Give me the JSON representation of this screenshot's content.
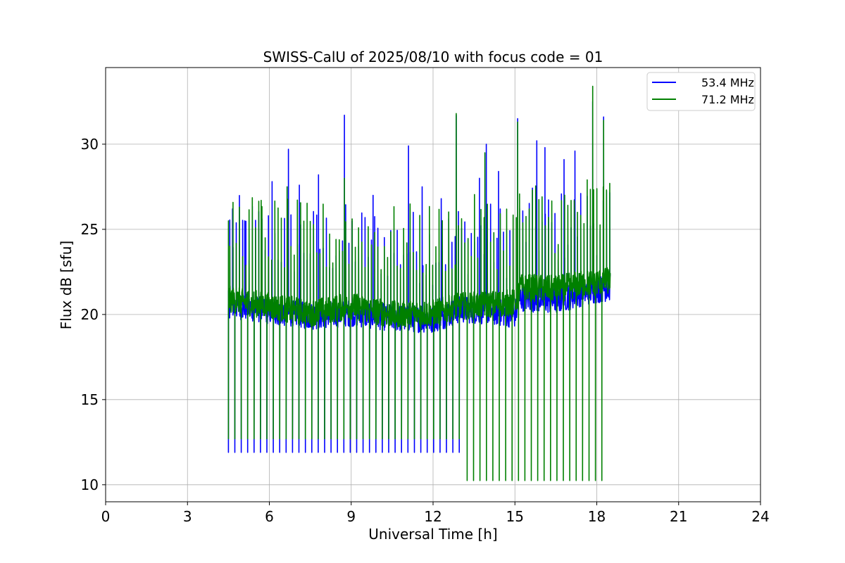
{
  "chart_data": {
    "type": "line",
    "title": "SWISS-CalU of 2025/08/10 with focus code = 01",
    "xlabel": "Universal Time [h]",
    "ylabel": "Flux dB [sfu]",
    "xlim": [
      0,
      24
    ],
    "ylim": [
      9.0,
      34.5
    ],
    "xticks": [
      0,
      3,
      6,
      9,
      12,
      15,
      18,
      21,
      24
    ],
    "yticks": [
      10,
      15,
      20,
      25,
      30
    ],
    "grid": true,
    "legend_position": "top-right",
    "series": [
      {
        "name": "53.4 MHz",
        "color": "#0000ff",
        "x_range": [
          4.5,
          18.5
        ],
        "baseline": [
          [
            4.5,
            20.6
          ],
          [
            6,
            20.2
          ],
          [
            7.5,
            19.9
          ],
          [
            9,
            20.1
          ],
          [
            10.5,
            19.8
          ],
          [
            12,
            19.7
          ],
          [
            13,
            20.3
          ],
          [
            14,
            20.2
          ],
          [
            15,
            20.0
          ],
          [
            15.2,
            21.0
          ],
          [
            16.5,
            20.8
          ],
          [
            17.5,
            21.3
          ],
          [
            18.5,
            21.6
          ]
        ],
        "peaks": [
          [
            4.65,
            26.2
          ],
          [
            5.1,
            25.5
          ],
          [
            6.1,
            27.8
          ],
          [
            6.7,
            29.7
          ],
          [
            7.1,
            27.6
          ],
          [
            7.8,
            28.2
          ],
          [
            8.75,
            31.7
          ],
          [
            9.8,
            27.0
          ],
          [
            11.1,
            29.9
          ],
          [
            11.6,
            27.5
          ],
          [
            12.3,
            26.8
          ],
          [
            12.85,
            31.7
          ],
          [
            13.7,
            28.0
          ],
          [
            13.95,
            30.0
          ],
          [
            14.4,
            28.4
          ],
          [
            15.1,
            31.5
          ],
          [
            15.8,
            30.2
          ],
          [
            16.1,
            29.8
          ],
          [
            16.8,
            29.1
          ],
          [
            17.2,
            29.6
          ],
          [
            17.85,
            32.5
          ],
          [
            18.25,
            31.6
          ]
        ],
        "dips": {
          "x_start": 4.5,
          "x_end": 13.0,
          "step": 0.235,
          "value": 11.9
        }
      },
      {
        "name": "71.2 MHz",
        "color": "#008000",
        "x_range": [
          4.5,
          18.5
        ],
        "baseline": [
          [
            4.5,
            20.9
          ],
          [
            6,
            20.5
          ],
          [
            7.5,
            20.1
          ],
          [
            9,
            20.5
          ],
          [
            10.5,
            20.0
          ],
          [
            12,
            20.1
          ],
          [
            13,
            20.5
          ],
          [
            14,
            20.6
          ],
          [
            15,
            20.7
          ],
          [
            15.2,
            21.6
          ],
          [
            16.5,
            21.5
          ],
          [
            17.5,
            21.8
          ],
          [
            18.5,
            22.0
          ]
        ],
        "peaks": [
          [
            4.5,
            25.5
          ],
          [
            5.7,
            26.7
          ],
          [
            6.65,
            27.5
          ],
          [
            8.75,
            28.0
          ],
          [
            12.85,
            31.8
          ],
          [
            13.9,
            29.5
          ],
          [
            15.1,
            31.3
          ],
          [
            17.85,
            33.4
          ],
          [
            18.25,
            31.4
          ]
        ],
        "dips_a": {
          "x_start": 4.5,
          "x_end": 13.0,
          "step": 0.235,
          "value": 12.7
        },
        "dips_b": {
          "x_start": 13.25,
          "x_end": 18.25,
          "step": 0.235,
          "value": 10.25
        }
      }
    ]
  }
}
